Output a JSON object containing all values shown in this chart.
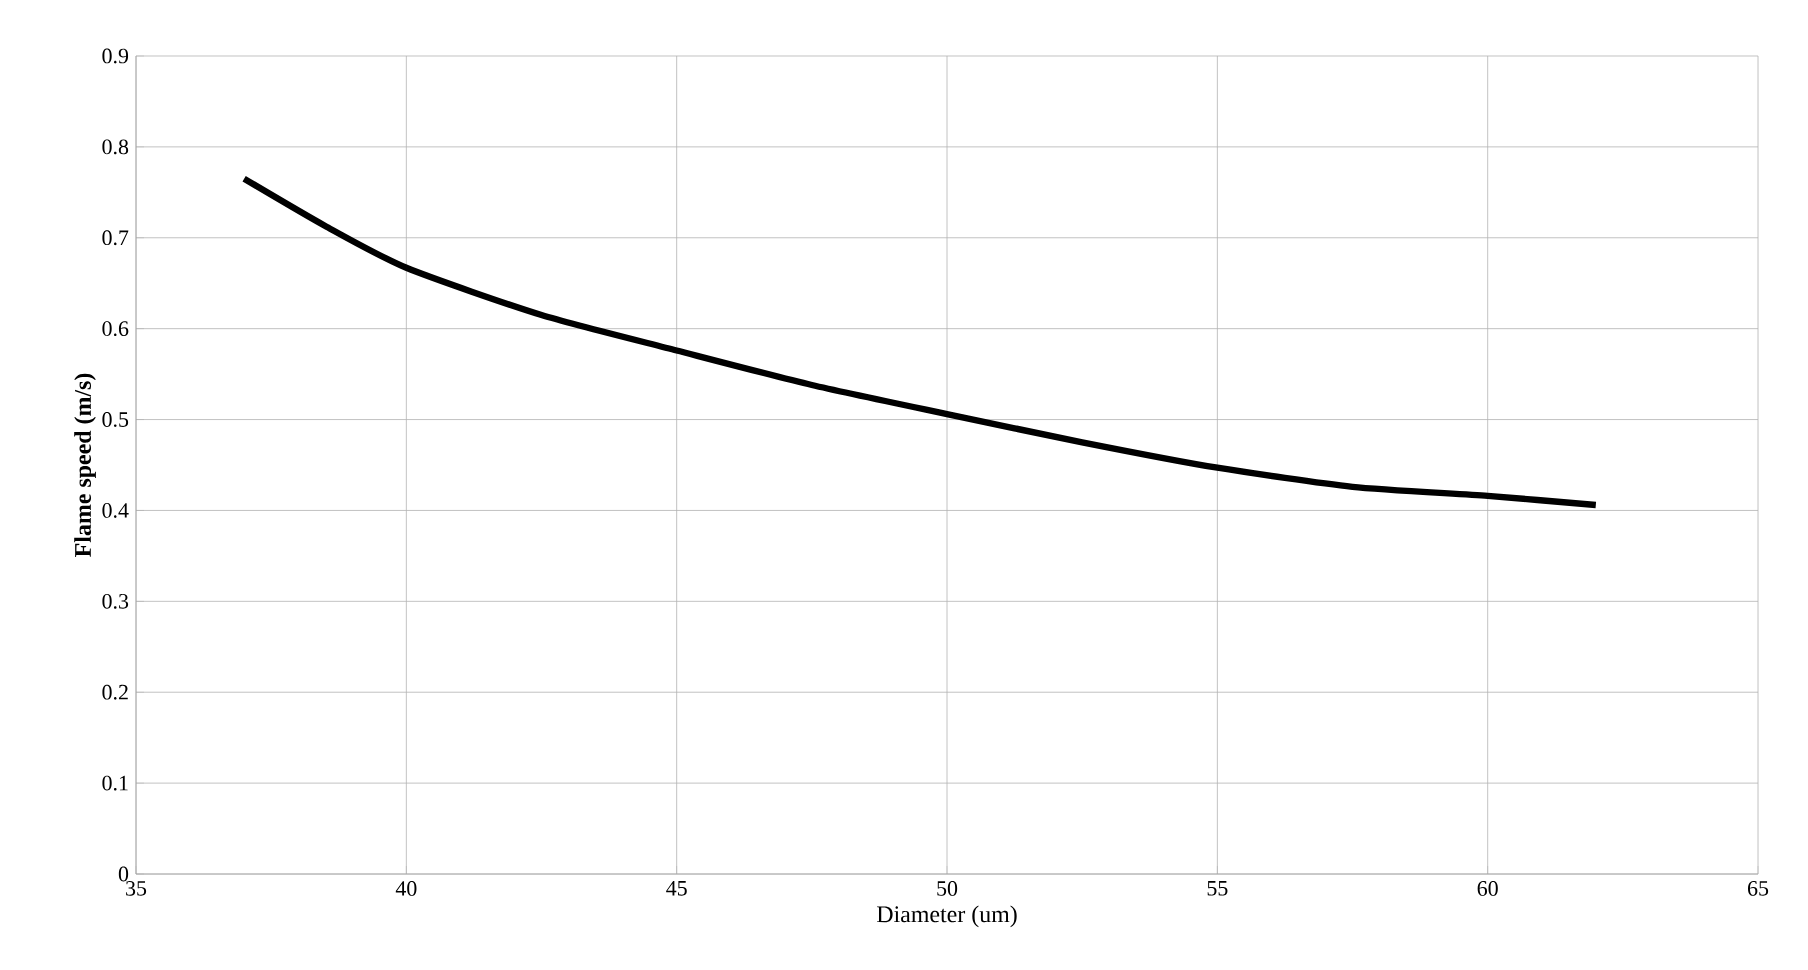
{
  "chart_data": {
    "type": "line",
    "xlabel": "Diameter (um)",
    "ylabel": "Flame speed (m/s)",
    "x": [
      37,
      38.5,
      40,
      42.5,
      45,
      47.5,
      50,
      52.5,
      55,
      57.5,
      60,
      62
    ],
    "series": [
      {
        "color": "#000000",
        "values": [
          0.765,
          0.713,
          0.667,
          0.615,
          0.576,
          0.538,
          0.506,
          0.475,
          0.447,
          0.426,
          0.416,
          0.406
        ]
      }
    ],
    "xlim": [
      35,
      65
    ],
    "ylim": [
      0,
      0.9
    ],
    "xticks": [
      35,
      40,
      45,
      50,
      55,
      60,
      65
    ],
    "yticks": [
      0,
      0.1,
      0.2,
      0.3,
      0.4,
      0.5,
      0.6,
      0.7,
      0.8,
      0.9
    ],
    "grid": true,
    "marker": "none",
    "line_style": "solid"
  }
}
